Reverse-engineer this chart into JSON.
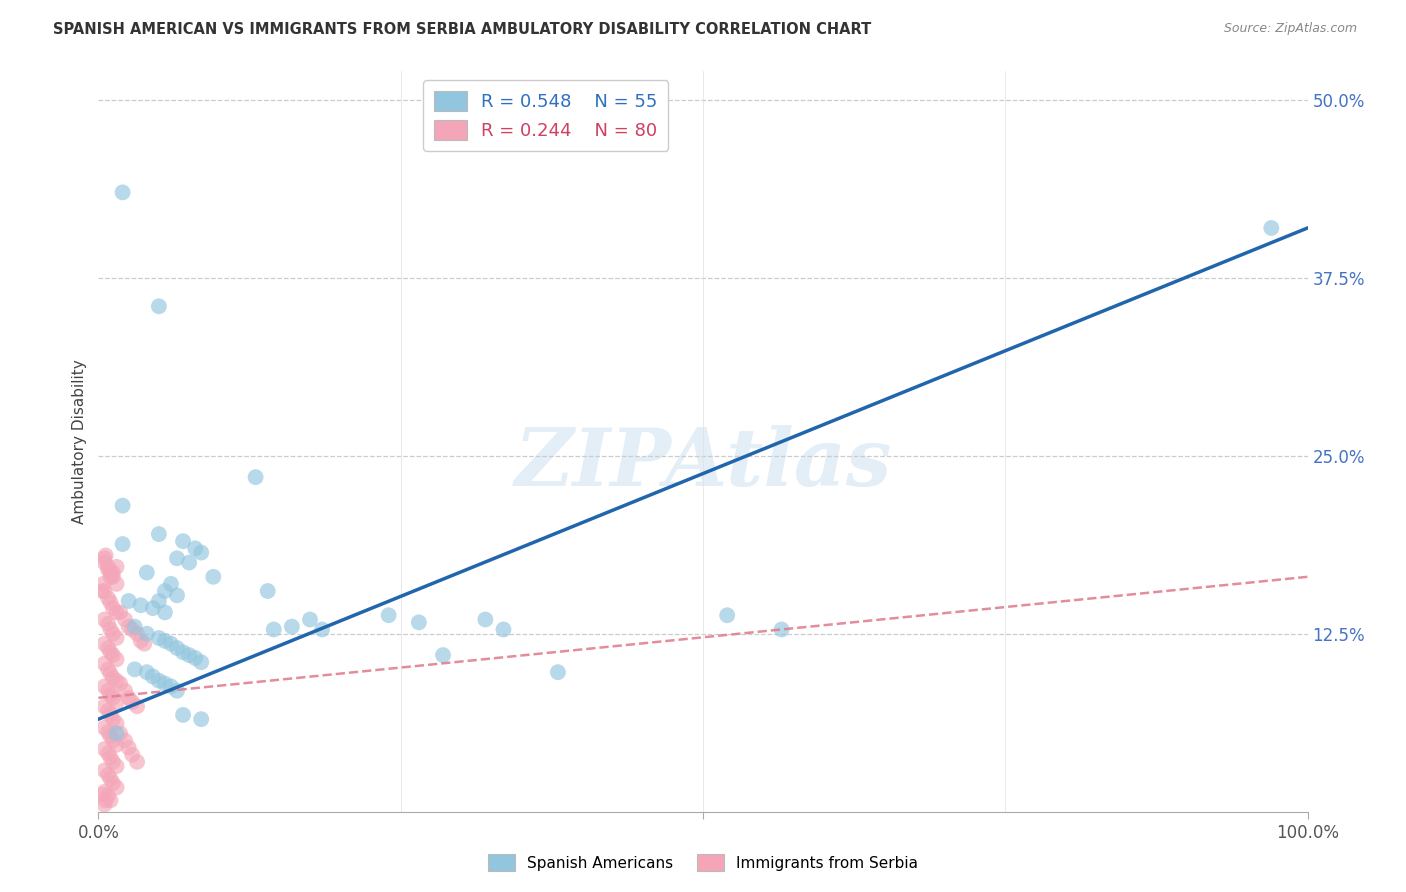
{
  "title": "SPANISH AMERICAN VS IMMIGRANTS FROM SERBIA AMBULATORY DISABILITY CORRELATION CHART",
  "source": "Source: ZipAtlas.com",
  "ylabel": "Ambulatory Disability",
  "xlim": [
    0.0,
    1.0
  ],
  "ylim": [
    0.0,
    0.52
  ],
  "color_blue": "#92c5de",
  "color_pink": "#f4a6b8",
  "color_line_blue": "#2166ac",
  "color_line_pink": "#e08090",
  "color_line_dashed": "#d0a0b0",
  "watermark_text": "ZIPAtlas",
  "scatter_blue": [
    [
      0.02,
      0.435
    ],
    [
      0.05,
      0.355
    ],
    [
      0.02,
      0.215
    ],
    [
      0.05,
      0.195
    ],
    [
      0.07,
      0.19
    ],
    [
      0.02,
      0.188
    ],
    [
      0.08,
      0.185
    ],
    [
      0.085,
      0.182
    ],
    [
      0.065,
      0.178
    ],
    [
      0.075,
      0.175
    ],
    [
      0.04,
      0.168
    ],
    [
      0.095,
      0.165
    ],
    [
      0.06,
      0.16
    ],
    [
      0.055,
      0.155
    ],
    [
      0.065,
      0.152
    ],
    [
      0.025,
      0.148
    ],
    [
      0.05,
      0.148
    ],
    [
      0.035,
      0.145
    ],
    [
      0.045,
      0.143
    ],
    [
      0.055,
      0.14
    ],
    [
      0.13,
      0.235
    ],
    [
      0.14,
      0.155
    ],
    [
      0.145,
      0.128
    ],
    [
      0.16,
      0.13
    ],
    [
      0.175,
      0.135
    ],
    [
      0.185,
      0.128
    ],
    [
      0.24,
      0.138
    ],
    [
      0.265,
      0.133
    ],
    [
      0.285,
      0.11
    ],
    [
      0.32,
      0.135
    ],
    [
      0.335,
      0.128
    ],
    [
      0.38,
      0.098
    ],
    [
      0.52,
      0.138
    ],
    [
      0.565,
      0.128
    ],
    [
      0.03,
      0.13
    ],
    [
      0.04,
      0.125
    ],
    [
      0.05,
      0.122
    ],
    [
      0.055,
      0.12
    ],
    [
      0.06,
      0.118
    ],
    [
      0.065,
      0.115
    ],
    [
      0.07,
      0.112
    ],
    [
      0.075,
      0.11
    ],
    [
      0.08,
      0.108
    ],
    [
      0.085,
      0.105
    ],
    [
      0.03,
      0.1
    ],
    [
      0.04,
      0.098
    ],
    [
      0.045,
      0.095
    ],
    [
      0.05,
      0.092
    ],
    [
      0.055,
      0.09
    ],
    [
      0.06,
      0.088
    ],
    [
      0.065,
      0.085
    ],
    [
      0.015,
      0.055
    ],
    [
      0.07,
      0.068
    ],
    [
      0.085,
      0.065
    ],
    [
      0.97,
      0.41
    ]
  ],
  "scatter_pink": [
    [
      0.005,
      0.178
    ],
    [
      0.008,
      0.172
    ],
    [
      0.01,
      0.168
    ],
    [
      0.012,
      0.165
    ],
    [
      0.015,
      0.16
    ],
    [
      0.005,
      0.155
    ],
    [
      0.008,
      0.15
    ],
    [
      0.01,
      0.147
    ],
    [
      0.012,
      0.143
    ],
    [
      0.015,
      0.14
    ],
    [
      0.005,
      0.135
    ],
    [
      0.008,
      0.132
    ],
    [
      0.01,
      0.128
    ],
    [
      0.012,
      0.125
    ],
    [
      0.015,
      0.122
    ],
    [
      0.005,
      0.118
    ],
    [
      0.008,
      0.115
    ],
    [
      0.01,
      0.112
    ],
    [
      0.012,
      0.11
    ],
    [
      0.015,
      0.107
    ],
    [
      0.005,
      0.104
    ],
    [
      0.008,
      0.1
    ],
    [
      0.01,
      0.097
    ],
    [
      0.012,
      0.094
    ],
    [
      0.015,
      0.092
    ],
    [
      0.005,
      0.088
    ],
    [
      0.008,
      0.085
    ],
    [
      0.01,
      0.082
    ],
    [
      0.012,
      0.08
    ],
    [
      0.015,
      0.077
    ],
    [
      0.005,
      0.074
    ],
    [
      0.008,
      0.071
    ],
    [
      0.01,
      0.068
    ],
    [
      0.012,
      0.065
    ],
    [
      0.015,
      0.062
    ],
    [
      0.005,
      0.059
    ],
    [
      0.008,
      0.056
    ],
    [
      0.01,
      0.053
    ],
    [
      0.012,
      0.05
    ],
    [
      0.015,
      0.047
    ],
    [
      0.005,
      0.044
    ],
    [
      0.008,
      0.041
    ],
    [
      0.01,
      0.038
    ],
    [
      0.012,
      0.035
    ],
    [
      0.015,
      0.032
    ],
    [
      0.005,
      0.029
    ],
    [
      0.008,
      0.026
    ],
    [
      0.01,
      0.023
    ],
    [
      0.012,
      0.02
    ],
    [
      0.015,
      0.017
    ],
    [
      0.005,
      0.014
    ],
    [
      0.008,
      0.011
    ],
    [
      0.01,
      0.008
    ],
    [
      0.005,
      0.005
    ],
    [
      0.018,
      0.14
    ],
    [
      0.022,
      0.135
    ],
    [
      0.025,
      0.13
    ],
    [
      0.028,
      0.128
    ],
    [
      0.032,
      0.125
    ],
    [
      0.035,
      0.12
    ],
    [
      0.038,
      0.118
    ],
    [
      0.018,
      0.09
    ],
    [
      0.022,
      0.085
    ],
    [
      0.025,
      0.08
    ],
    [
      0.028,
      0.077
    ],
    [
      0.032,
      0.074
    ],
    [
      0.018,
      0.055
    ],
    [
      0.022,
      0.05
    ],
    [
      0.025,
      0.045
    ],
    [
      0.028,
      0.04
    ],
    [
      0.032,
      0.035
    ],
    [
      0.005,
      0.175
    ],
    [
      0.008,
      0.17
    ],
    [
      0.01,
      0.165
    ],
    [
      0.004,
      0.16
    ],
    [
      0.003,
      0.155
    ],
    [
      0.015,
      0.172
    ],
    [
      0.012,
      0.168
    ],
    [
      0.006,
      0.18
    ],
    [
      0.004,
      0.012
    ],
    [
      0.006,
      0.008
    ]
  ],
  "blue_line_x": [
    0.0,
    1.0
  ],
  "blue_line_y": [
    0.065,
    0.41
  ],
  "pink_line_x": [
    0.0,
    1.0
  ],
  "pink_line_y": [
    0.08,
    0.165
  ],
  "yticks": [
    0.125,
    0.25,
    0.375,
    0.5
  ],
  "ytick_labels": [
    "12.5%",
    "25.0%",
    "37.5%",
    "50.0%"
  ],
  "xticks": [
    0.0,
    0.5,
    1.0
  ],
  "xtick_labels": [
    "0.0%",
    "",
    "100.0%"
  ]
}
